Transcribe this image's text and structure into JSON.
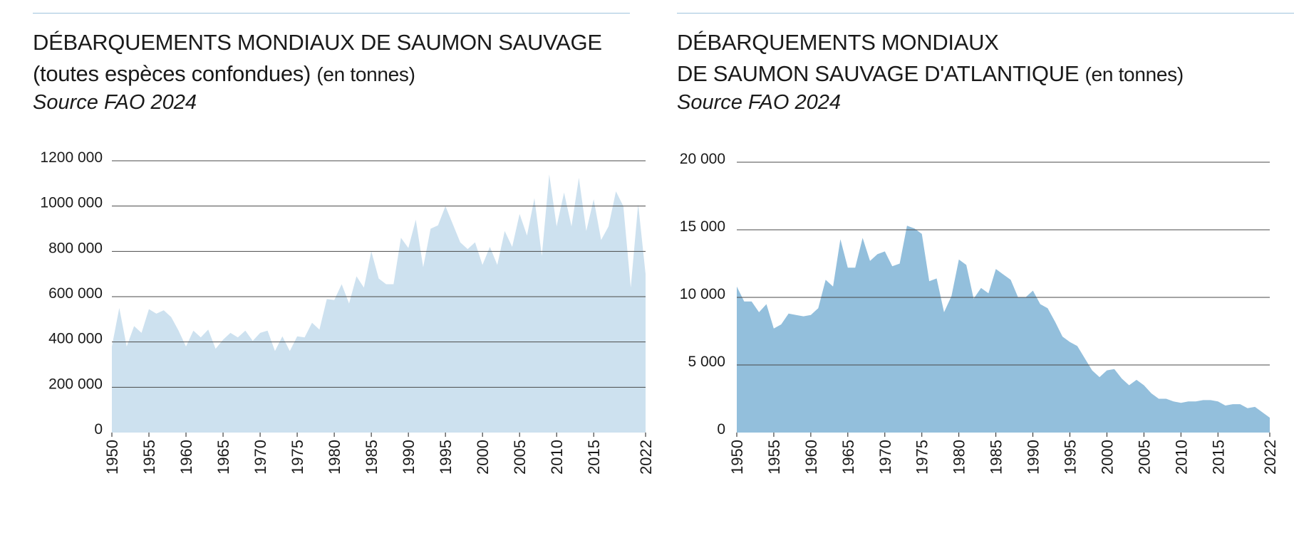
{
  "colors": {
    "left_fill": "#cde1ef",
    "right_fill": "#93bfdc",
    "gridline": "#4a4a4a",
    "rule": "#9fc3dd"
  },
  "chart_data": [
    {
      "type": "area",
      "title_line1": "DÉBARQUEMENTS MONDIAUX DE SAUMON SAUVAGE",
      "title_line2": "(toutes espèces confondues)",
      "unit": "(en tonnes)",
      "source": "Source FAO 2024",
      "xlim": [
        1950,
        2022
      ],
      "ylim": [
        0,
        1200000
      ],
      "x_ticks": [
        1950,
        1955,
        1960,
        1965,
        1970,
        1975,
        1980,
        1985,
        1990,
        1995,
        2000,
        2005,
        2010,
        2015,
        2022
      ],
      "y_ticks": [
        0,
        200000,
        400000,
        600000,
        800000,
        1000000,
        1200000
      ],
      "y_tick_labels": [
        "0",
        "200 000",
        "400 000",
        "600 000",
        "800 000",
        "1000 000",
        "1200 000"
      ],
      "gridlines": true,
      "x": [
        1950,
        1951,
        1952,
        1953,
        1954,
        1955,
        1956,
        1957,
        1958,
        1959,
        1960,
        1961,
        1962,
        1963,
        1964,
        1965,
        1966,
        1967,
        1968,
        1969,
        1970,
        1971,
        1972,
        1973,
        1974,
        1975,
        1976,
        1977,
        1978,
        1979,
        1980,
        1981,
        1982,
        1983,
        1984,
        1985,
        1986,
        1987,
        1988,
        1989,
        1990,
        1991,
        1992,
        1993,
        1994,
        1995,
        1996,
        1997,
        1998,
        1999,
        2000,
        2001,
        2002,
        2003,
        2004,
        2005,
        2006,
        2007,
        2008,
        2009,
        2010,
        2011,
        2012,
        2013,
        2014,
        2015,
        2016,
        2017,
        2018,
        2019,
        2020,
        2021,
        2022
      ],
      "values": [
        380000,
        550000,
        380000,
        470000,
        440000,
        545000,
        525000,
        540000,
        510000,
        450000,
        380000,
        450000,
        420000,
        455000,
        370000,
        410000,
        440000,
        420000,
        450000,
        405000,
        440000,
        450000,
        360000,
        425000,
        360000,
        425000,
        420000,
        485000,
        455000,
        590000,
        585000,
        655000,
        570000,
        690000,
        640000,
        800000,
        680000,
        655000,
        655000,
        860000,
        815000,
        940000,
        730000,
        900000,
        915000,
        1000000,
        920000,
        840000,
        810000,
        840000,
        740000,
        820000,
        740000,
        890000,
        820000,
        965000,
        870000,
        1035000,
        780000,
        1140000,
        910000,
        1060000,
        910000,
        1125000,
        890000,
        1030000,
        850000,
        910000,
        1065000,
        1000000,
        640000,
        1010000,
        700000
      ]
    },
    {
      "type": "area",
      "title_line1": "DÉBARQUEMENTS MONDIAUX",
      "title_line2": "DE SAUMON SAUVAGE D'ATLANTIQUE",
      "unit": "(en tonnes)",
      "source": "Source FAO 2024",
      "xlim": [
        1950,
        2022
      ],
      "ylim": [
        0,
        20000
      ],
      "x_ticks": [
        1950,
        1955,
        1960,
        1965,
        1970,
        1975,
        1980,
        1985,
        1990,
        1995,
        2000,
        2005,
        2010,
        2015,
        2022
      ],
      "y_ticks": [
        0,
        5000,
        10000,
        15000,
        20000
      ],
      "y_tick_labels": [
        "0",
        "5 000",
        "10 000",
        "15 000",
        "20 000"
      ],
      "gridlines": true,
      "x": [
        1950,
        1951,
        1952,
        1953,
        1954,
        1955,
        1956,
        1957,
        1958,
        1959,
        1960,
        1961,
        1962,
        1963,
        1964,
        1965,
        1966,
        1967,
        1968,
        1969,
        1970,
        1971,
        1972,
        1973,
        1974,
        1975,
        1976,
        1977,
        1978,
        1979,
        1980,
        1981,
        1982,
        1983,
        1984,
        1985,
        1986,
        1987,
        1988,
        1989,
        1990,
        1991,
        1992,
        1993,
        1994,
        1995,
        1996,
        1997,
        1998,
        1999,
        2000,
        2001,
        2002,
        2003,
        2004,
        2005,
        2006,
        2007,
        2008,
        2009,
        2010,
        2011,
        2012,
        2013,
        2014,
        2015,
        2016,
        2017,
        2018,
        2019,
        2020,
        2021,
        2022
      ],
      "values": [
        10800,
        9700,
        9700,
        8900,
        9500,
        7700,
        8000,
        8800,
        8700,
        8600,
        8700,
        9200,
        11300,
        10800,
        14300,
        12200,
        12200,
        14400,
        12700,
        13200,
        13400,
        12300,
        12500,
        15300,
        15100,
        14700,
        11200,
        11400,
        8900,
        10100,
        12800,
        12400,
        9900,
        10700,
        10300,
        12100,
        11700,
        11300,
        10000,
        10000,
        10500,
        9500,
        9200,
        8200,
        7100,
        6700,
        6400,
        5500,
        4600,
        4100,
        4600,
        4700,
        4000,
        3500,
        3900,
        3500,
        2900,
        2500,
        2500,
        2300,
        2200,
        2300,
        2300,
        2400,
        2400,
        2300,
        2000,
        2100,
        2100,
        1800,
        1900,
        1500,
        1100
      ]
    }
  ]
}
